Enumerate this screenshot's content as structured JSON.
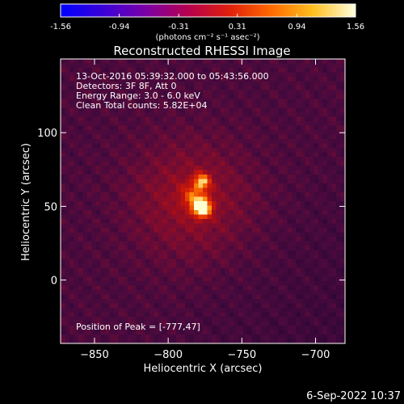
{
  "colorbar": {
    "ticks": [
      "-1.56",
      "-0.94",
      "-0.31",
      "0.31",
      "0.94",
      "1.56"
    ],
    "tick_values": [
      -1.56,
      -0.94,
      -0.31,
      0.31,
      0.94,
      1.56
    ],
    "range": [
      -1.56,
      1.56
    ],
    "unit_label": "(photons cm⁻² s⁻¹ asec⁻²)",
    "colors": [
      "#0000ff",
      "#3a00d8",
      "#7a00a8",
      "#b40050",
      "#e01f0c",
      "#ff6a00",
      "#ffc020",
      "#ffffe0"
    ]
  },
  "chart_data": {
    "type": "heatmap",
    "title": "Reconstructed RHESSI Image",
    "xlabel": "Heliocentric X (arcsec)",
    "ylabel": "Heliocentric Y (arcsec)",
    "xlim": [
      -873,
      -680
    ],
    "ylim": [
      -43,
      150
    ],
    "xticks": [
      -850,
      -800,
      -750,
      -700
    ],
    "xtick_labels": [
      "−850",
      "−800",
      "−750",
      "−700"
    ],
    "yticks": [
      0,
      50,
      100
    ],
    "ytick_labels": [
      "0",
      "50",
      "100"
    ],
    "info_lines": [
      "13-Oct-2016 05:39:32.000 to 05:43:56.000",
      "Detectors: 3F 8F, Att 0",
      "Energy Range: 3.0 - 6.0 keV",
      "Clean    Total counts: 5.82E+04"
    ],
    "peak_label": "Position of Peak = [-777,47]",
    "peak": [
      -777,
      47
    ],
    "sources": [
      {
        "x": -777,
        "y": 49,
        "peak": 1.56,
        "sigma": 4.5
      },
      {
        "x": -777,
        "y": 67,
        "peak": 1.0,
        "sigma": 4.0
      },
      {
        "x": -783,
        "y": 57,
        "peak": 0.6,
        "sigma": 6.0
      },
      {
        "x": -785,
        "y": 55,
        "peak": 0.45,
        "sigma": 28.0
      }
    ]
  },
  "footer": {
    "timestamp": "6-Sep-2022 10:37"
  }
}
